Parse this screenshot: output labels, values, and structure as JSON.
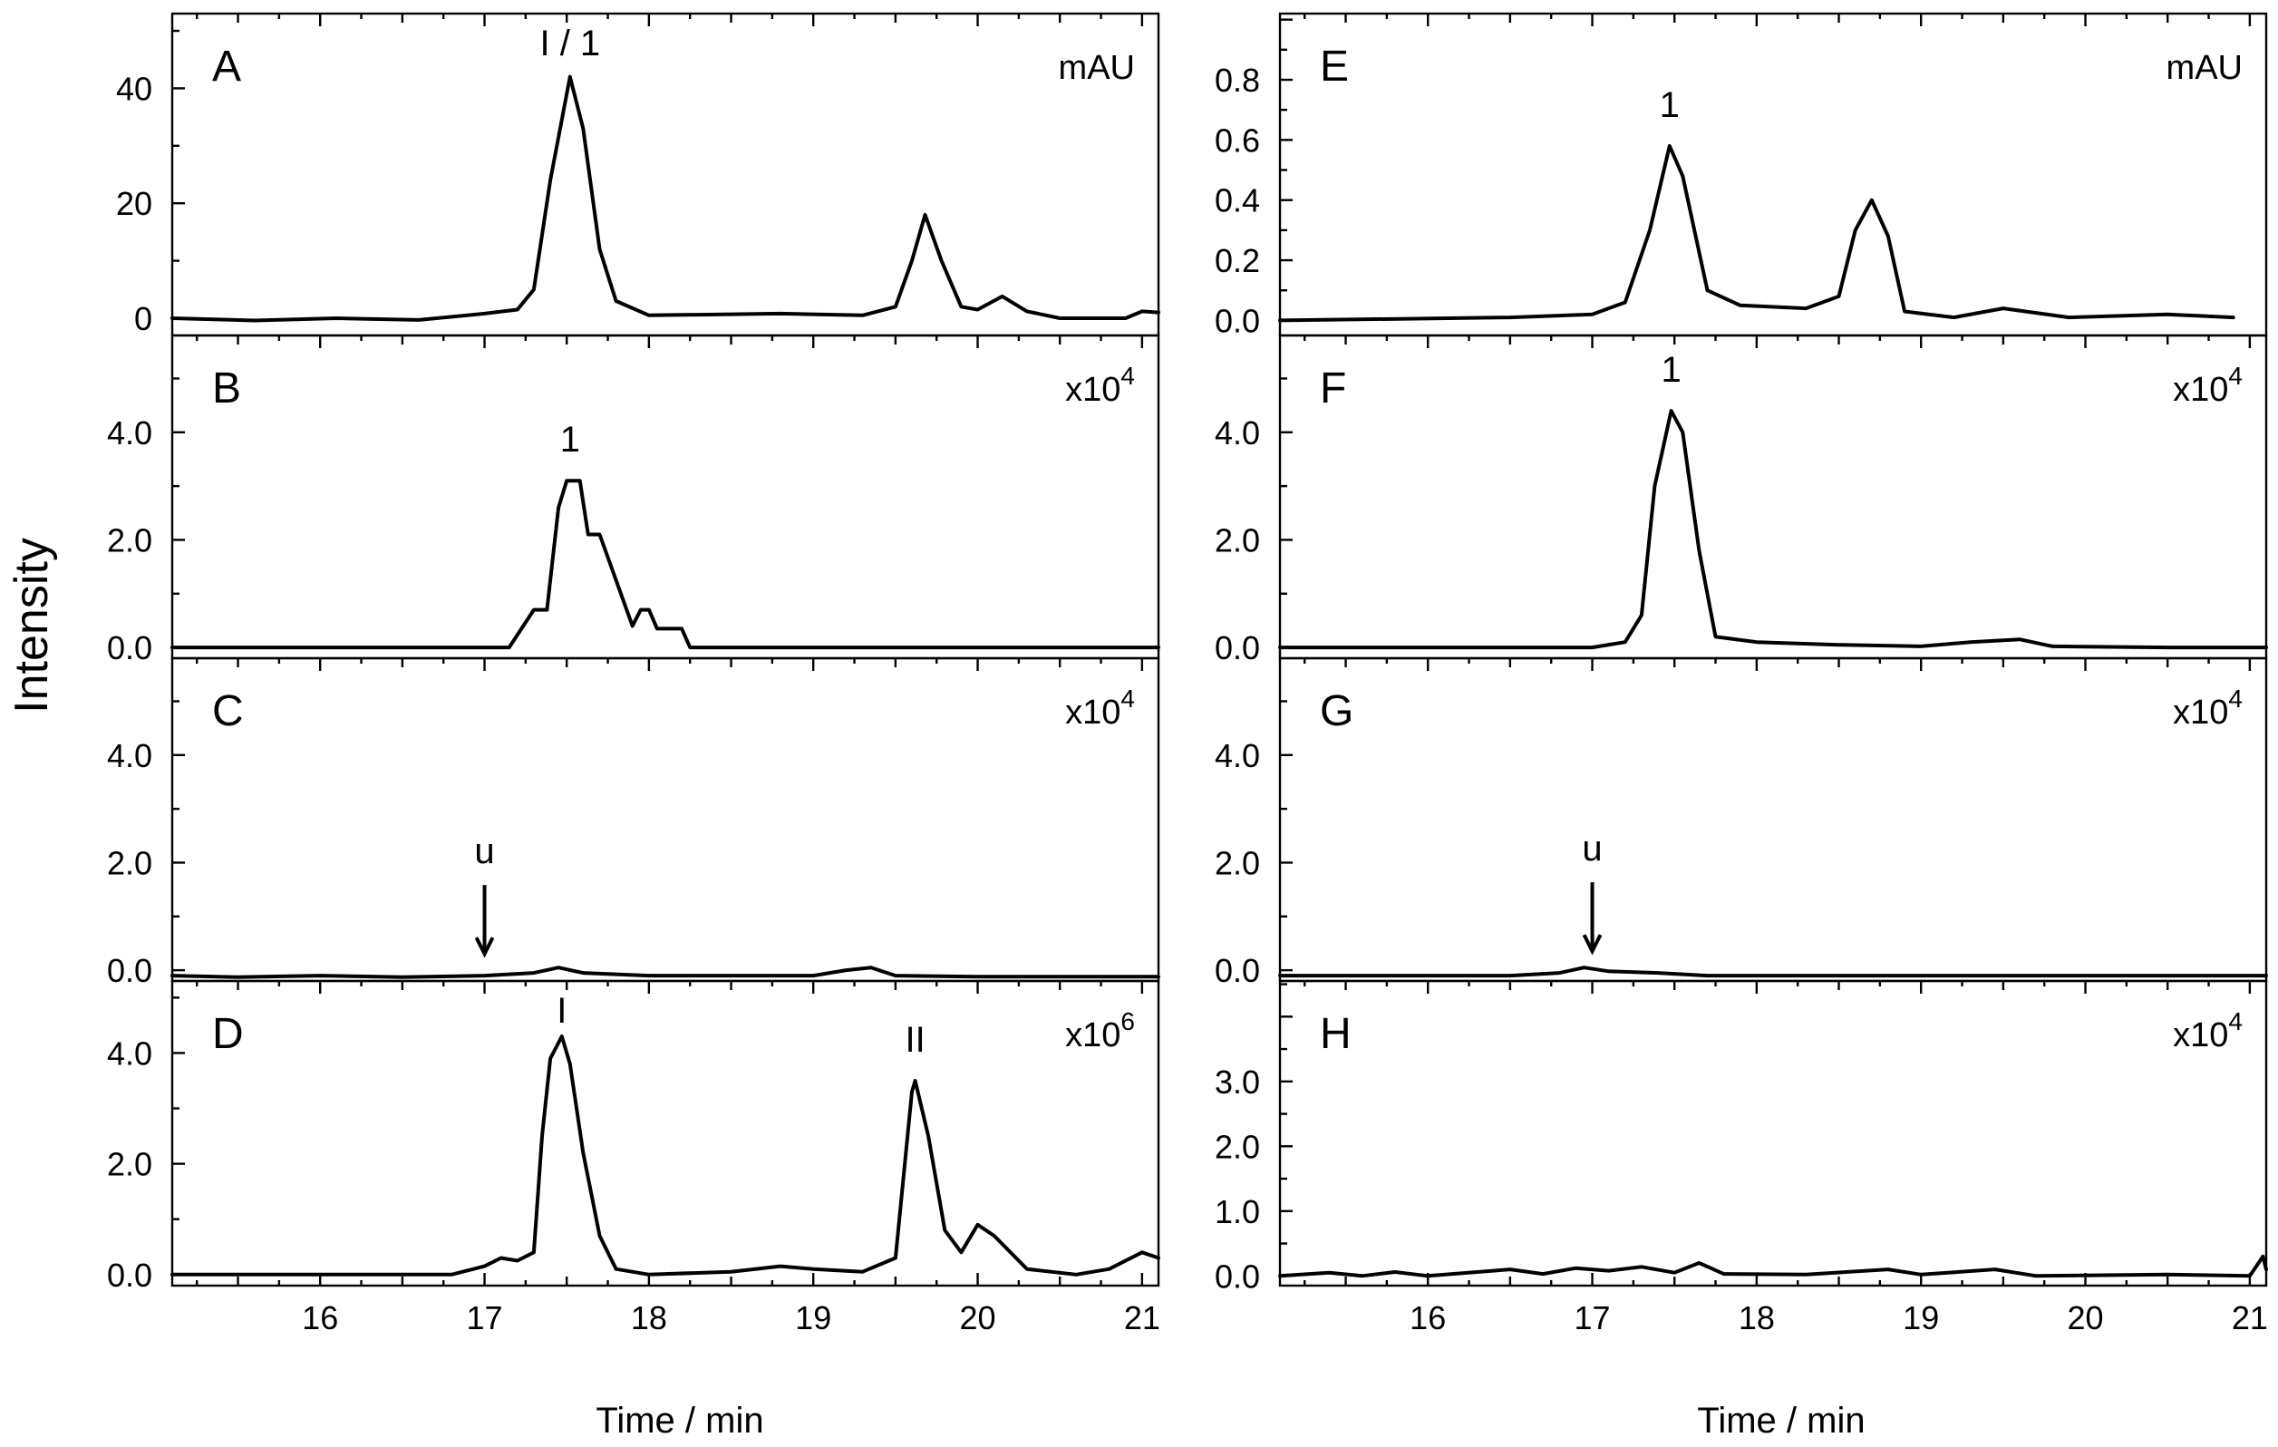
{
  "figure": {
    "ylabel": "Intensity",
    "xlabel": "Time / min"
  },
  "chart_data": [
    {
      "panel": "A",
      "type": "line",
      "unit": "mAU",
      "unit_exp": "",
      "xlabel": "Time / min",
      "xlim": [
        15.1,
        21.1
      ],
      "x_ticks": [
        "16",
        "17",
        "18",
        "19",
        "20",
        "21"
      ],
      "ylim": [
        -3,
        53
      ],
      "y_ticks": [
        "0",
        "20",
        "40"
      ],
      "y_tick_values": [
        0,
        20,
        40
      ],
      "baseline": -0.2,
      "points": [
        [
          15.1,
          0
        ],
        [
          15.6,
          -0.4
        ],
        [
          16.1,
          0
        ],
        [
          16.6,
          -0.3
        ],
        [
          17.0,
          0.8
        ],
        [
          17.2,
          1.5
        ],
        [
          17.3,
          5
        ],
        [
          17.4,
          24
        ],
        [
          17.52,
          42
        ],
        [
          17.6,
          33
        ],
        [
          17.7,
          12
        ],
        [
          17.8,
          3
        ],
        [
          18.0,
          0.5
        ],
        [
          18.8,
          0.8
        ],
        [
          19.3,
          0.5
        ],
        [
          19.5,
          2
        ],
        [
          19.6,
          10
        ],
        [
          19.68,
          18
        ],
        [
          19.78,
          10
        ],
        [
          19.9,
          2
        ],
        [
          20.0,
          1.5
        ],
        [
          20.15,
          3.8
        ],
        [
          20.3,
          1.2
        ],
        [
          20.5,
          0
        ],
        [
          20.9,
          0
        ],
        [
          21.0,
          1.2
        ],
        [
          21.1,
          1
        ]
      ],
      "peaks": [
        {
          "label": "I / 1",
          "x": 17.52,
          "y": 42
        }
      ]
    },
    {
      "panel": "B",
      "type": "line",
      "unit": "x10",
      "unit_exp": "4",
      "xlabel": "Time / min",
      "xlim": [
        15.1,
        21.1
      ],
      "x_ticks": [
        "16",
        "17",
        "18",
        "19",
        "20",
        "21"
      ],
      "ylim": [
        -0.2,
        5.8
      ],
      "y_ticks": [
        "0.0",
        "2.0",
        "4.0"
      ],
      "y_tick_values": [
        0,
        2,
        4
      ],
      "baseline": 0,
      "points": [
        [
          15.1,
          0
        ],
        [
          17.15,
          0
        ],
        [
          17.3,
          0.7
        ],
        [
          17.38,
          0.7
        ],
        [
          17.45,
          2.6
        ],
        [
          17.5,
          3.1
        ],
        [
          17.58,
          3.1
        ],
        [
          17.63,
          2.1
        ],
        [
          17.7,
          2.1
        ],
        [
          17.9,
          0.4
        ],
        [
          17.95,
          0.7
        ],
        [
          18.0,
          0.7
        ],
        [
          18.05,
          0.35
        ],
        [
          18.2,
          0.35
        ],
        [
          18.25,
          0
        ],
        [
          21.1,
          0
        ]
      ],
      "peaks": [
        {
          "label": "1",
          "x": 17.52,
          "y": 3.1
        }
      ]
    },
    {
      "panel": "C",
      "type": "line",
      "unit": "x10",
      "unit_exp": "4",
      "xlabel": "Time / min",
      "xlim": [
        15.1,
        21.1
      ],
      "x_ticks": [
        "16",
        "17",
        "18",
        "19",
        "20",
        "21"
      ],
      "ylim": [
        -0.2,
        5.8
      ],
      "y_ticks": [
        "0.0",
        "2.0",
        "4.0"
      ],
      "y_tick_values": [
        0,
        2,
        4
      ],
      "baseline": 0,
      "points": [
        [
          15.1,
          -0.1
        ],
        [
          15.5,
          -0.13
        ],
        [
          16.0,
          -0.1
        ],
        [
          16.5,
          -0.13
        ],
        [
          17.0,
          -0.1
        ],
        [
          17.3,
          -0.05
        ],
        [
          17.45,
          0.05
        ],
        [
          17.6,
          -0.05
        ],
        [
          18.0,
          -0.1
        ],
        [
          19.0,
          -0.1
        ],
        [
          19.2,
          0
        ],
        [
          19.35,
          0.05
        ],
        [
          19.5,
          -0.1
        ],
        [
          20.0,
          -0.12
        ],
        [
          21.1,
          -0.12
        ]
      ],
      "peaks": [
        {
          "label": "u",
          "x": 17.0,
          "y": 0
        }
      ]
    },
    {
      "panel": "D",
      "type": "line",
      "unit": "x10",
      "unit_exp": "6",
      "xlabel": "Time / min",
      "xlim": [
        15.1,
        21.1
      ],
      "x_ticks": [
        "16",
        "17",
        "18",
        "19",
        "20",
        "21"
      ],
      "ylim": [
        -0.2,
        5.3
      ],
      "y_ticks": [
        "0.0",
        "2.0",
        "4.0"
      ],
      "y_tick_values": [
        0,
        2,
        4
      ],
      "baseline": 0,
      "points": [
        [
          15.1,
          0
        ],
        [
          16.8,
          0
        ],
        [
          17.0,
          0.15
        ],
        [
          17.1,
          0.3
        ],
        [
          17.2,
          0.25
        ],
        [
          17.3,
          0.4
        ],
        [
          17.35,
          2.5
        ],
        [
          17.4,
          3.9
        ],
        [
          17.47,
          4.3
        ],
        [
          17.52,
          3.8
        ],
        [
          17.6,
          2.2
        ],
        [
          17.7,
          0.7
        ],
        [
          17.8,
          0.1
        ],
        [
          18.0,
          0
        ],
        [
          18.5,
          0.05
        ],
        [
          18.8,
          0.15
        ],
        [
          19.0,
          0.1
        ],
        [
          19.3,
          0.05
        ],
        [
          19.5,
          0.3
        ],
        [
          19.6,
          3.3
        ],
        [
          19.62,
          3.5
        ],
        [
          19.7,
          2.5
        ],
        [
          19.8,
          0.8
        ],
        [
          19.9,
          0.4
        ],
        [
          20.0,
          0.9
        ],
        [
          20.1,
          0.7
        ],
        [
          20.3,
          0.1
        ],
        [
          20.6,
          0
        ],
        [
          20.8,
          0.1
        ],
        [
          21.0,
          0.4
        ],
        [
          21.1,
          0.3
        ]
      ],
      "peaks": [
        {
          "label": "I",
          "x": 17.47,
          "y": 4.3
        },
        {
          "label": "II",
          "x": 19.62,
          "y": 3.5
        }
      ]
    },
    {
      "panel": "E",
      "type": "line",
      "unit": "mAU",
      "unit_exp": "",
      "xlabel": "Time / min",
      "xlim": [
        15.1,
        21.1
      ],
      "x_ticks": [
        "16",
        "17",
        "18",
        "19",
        "20",
        "21"
      ],
      "ylim": [
        -0.05,
        1.02
      ],
      "y_ticks": [
        "0.0",
        "0.2",
        "0.4",
        "0.6",
        "0.8"
      ],
      "y_tick_values": [
        0,
        0.2,
        0.4,
        0.6,
        0.8
      ],
      "baseline": 0,
      "points": [
        [
          15.1,
          0
        ],
        [
          16.5,
          0.01
        ],
        [
          17.0,
          0.02
        ],
        [
          17.2,
          0.06
        ],
        [
          17.35,
          0.3
        ],
        [
          17.47,
          0.58
        ],
        [
          17.55,
          0.48
        ],
        [
          17.7,
          0.1
        ],
        [
          17.9,
          0.05
        ],
        [
          18.3,
          0.04
        ],
        [
          18.5,
          0.08
        ],
        [
          18.6,
          0.3
        ],
        [
          18.7,
          0.4
        ],
        [
          18.8,
          0.28
        ],
        [
          18.9,
          0.03
        ],
        [
          19.2,
          0.01
        ],
        [
          19.5,
          0.04
        ],
        [
          19.9,
          0.01
        ],
        [
          20.5,
          0.02
        ],
        [
          20.9,
          0.01
        ]
      ],
      "peaks": [
        {
          "label": "1",
          "x": 17.47,
          "y": 0.58
        }
      ]
    },
    {
      "panel": "F",
      "type": "line",
      "unit": "x10",
      "unit_exp": "4",
      "xlabel": "Time / min",
      "xlim": [
        15.1,
        21.1
      ],
      "x_ticks": [
        "16",
        "17",
        "18",
        "19",
        "20",
        "21"
      ],
      "ylim": [
        -0.2,
        5.8
      ],
      "y_ticks": [
        "0.0",
        "2.0",
        "4.0"
      ],
      "y_tick_values": [
        0,
        2,
        4
      ],
      "baseline": 0,
      "points": [
        [
          15.1,
          0
        ],
        [
          17.0,
          0
        ],
        [
          17.2,
          0.1
        ],
        [
          17.3,
          0.6
        ],
        [
          17.38,
          3.0
        ],
        [
          17.48,
          4.4
        ],
        [
          17.55,
          4.0
        ],
        [
          17.65,
          1.8
        ],
        [
          17.75,
          0.2
        ],
        [
          18.0,
          0.1
        ],
        [
          18.5,
          0.05
        ],
        [
          19.0,
          0.02
        ],
        [
          19.3,
          0.1
        ],
        [
          19.6,
          0.15
        ],
        [
          19.8,
          0.02
        ],
        [
          20.5,
          0
        ],
        [
          21.1,
          0
        ]
      ],
      "peaks": [
        {
          "label": "1",
          "x": 17.48,
          "y": 4.4
        }
      ]
    },
    {
      "panel": "G",
      "type": "line",
      "unit": "x10",
      "unit_exp": "4",
      "xlabel": "Time / min",
      "xlim": [
        15.1,
        21.1
      ],
      "x_ticks": [
        "16",
        "17",
        "18",
        "19",
        "20",
        "21"
      ],
      "ylim": [
        -0.2,
        5.8
      ],
      "y_ticks": [
        "0.0",
        "2.0",
        "4.0"
      ],
      "y_tick_values": [
        0,
        2,
        4
      ],
      "baseline": 0,
      "points": [
        [
          15.1,
          -0.1
        ],
        [
          16.5,
          -0.1
        ],
        [
          16.8,
          -0.05
        ],
        [
          16.95,
          0.05
        ],
        [
          17.1,
          -0.02
        ],
        [
          17.4,
          -0.05
        ],
        [
          17.7,
          -0.1
        ],
        [
          21.1,
          -0.1
        ]
      ],
      "peaks": [
        {
          "label": "u",
          "x": 17.0,
          "y": 0.05
        }
      ]
    },
    {
      "panel": "H",
      "type": "line",
      "unit": "x10",
      "unit_exp": "4",
      "xlabel": "Time / min",
      "xlim": [
        15.1,
        21.1
      ],
      "x_ticks": [
        "16",
        "17",
        "18",
        "19",
        "20",
        "21"
      ],
      "ylim": [
        -0.15,
        4.55
      ],
      "y_ticks": [
        "0.0",
        "1.0",
        "2.0",
        "3.0"
      ],
      "y_tick_values": [
        0,
        1,
        2,
        3
      ],
      "baseline": 0,
      "points": [
        [
          15.1,
          0
        ],
        [
          15.4,
          0.05
        ],
        [
          15.6,
          0
        ],
        [
          15.8,
          0.06
        ],
        [
          16.0,
          0
        ],
        [
          16.5,
          0.1
        ],
        [
          16.7,
          0.03
        ],
        [
          16.9,
          0.12
        ],
        [
          17.1,
          0.08
        ],
        [
          17.3,
          0.14
        ],
        [
          17.5,
          0.05
        ],
        [
          17.65,
          0.2
        ],
        [
          17.8,
          0.03
        ],
        [
          18.3,
          0.02
        ],
        [
          18.8,
          0.1
        ],
        [
          19.0,
          0.02
        ],
        [
          19.45,
          0.1
        ],
        [
          19.7,
          0
        ],
        [
          20.5,
          0.02
        ],
        [
          21.0,
          0
        ],
        [
          21.08,
          0.3
        ],
        [
          21.1,
          0.1
        ]
      ],
      "peaks": []
    }
  ]
}
